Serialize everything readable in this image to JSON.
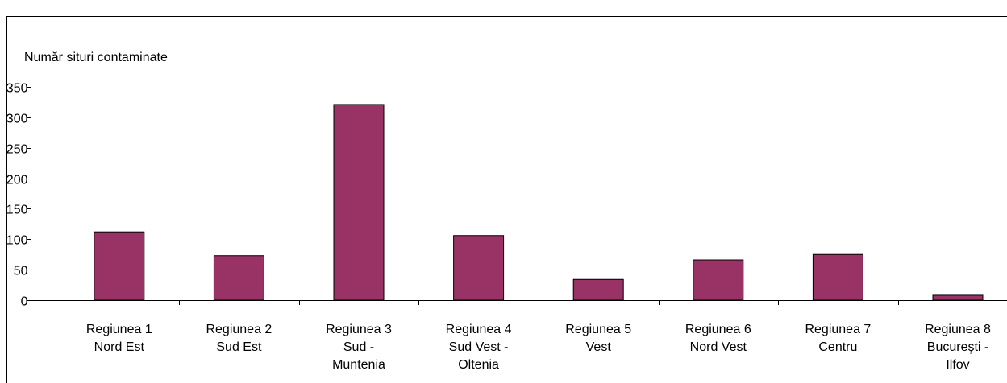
{
  "chart_data": {
    "type": "bar",
    "y_label": "Număr situri contaminate",
    "categories": [
      "Regiunea 1\nNord Est",
      "Regiunea 2\nSud Est",
      "Regiunea 3\nSud -\nMuntenia",
      "Regiunea 4\nSud Vest -\nOltenia",
      "Regiunea 5\nVest",
      "Regiunea 6\nNord Vest",
      "Regiunea 7\nCentru",
      "Regiunea 8\nBucureşti -\nIlfov"
    ],
    "values": [
      112,
      73,
      321,
      106,
      34,
      66,
      75,
      8
    ],
    "color": "#993366",
    "ylim": [
      0,
      350
    ],
    "yticks": [
      0,
      50,
      100,
      150,
      200,
      250,
      300,
      350
    ],
    "grid": false
  }
}
